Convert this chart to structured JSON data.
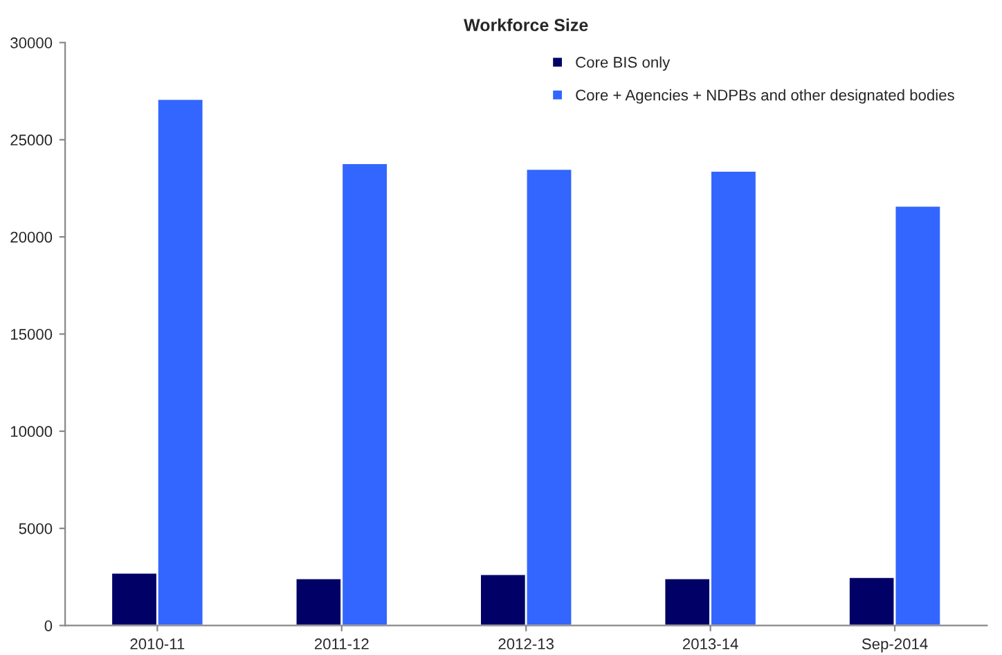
{
  "chart_data": {
    "type": "bar",
    "title": "Workforce Size",
    "categories": [
      "2010-11",
      "2011-12",
      "2012-13",
      "2013-14",
      "Sep-2014"
    ],
    "series": [
      {
        "name": "Core BIS only",
        "color": "#000066",
        "values": [
          2720,
          2430,
          2650,
          2430,
          2500
        ]
      },
      {
        "name": "Core + Agencies + NDPBs and other designated bodies",
        "color": "#3366ff",
        "values": [
          27100,
          23800,
          23500,
          23400,
          21600
        ]
      }
    ],
    "ylim": [
      0,
      30000
    ],
    "yticks": [
      0,
      5000,
      10000,
      15000,
      20000,
      25000,
      30000
    ],
    "grid": false,
    "legend": "top right"
  }
}
